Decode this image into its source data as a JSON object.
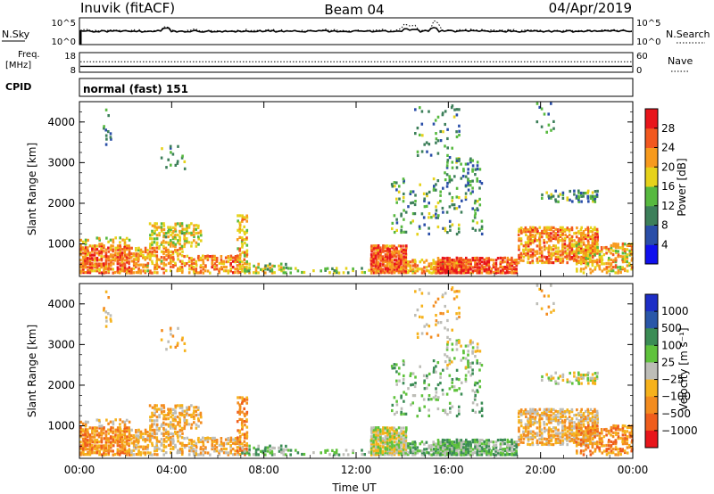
{
  "header": {
    "station": "Inuvik (fitACF)",
    "beam": "Beam 04",
    "date": "04/Apr/2019"
  },
  "chart_data": [
    {
      "type": "line",
      "name": "nsky-nsearch-panel",
      "left_label": "N.Sky",
      "right_label": "N.Search",
      "left_ticks": [
        "10^5",
        "10^0"
      ],
      "right_ticks": [
        "10^5",
        "10^0"
      ],
      "series": [
        {
          "name": "N.Sky",
          "style": "solid"
        },
        {
          "name": "N.Search",
          "style": "dotted"
        }
      ]
    },
    {
      "type": "line",
      "name": "freq-nave-panel",
      "left_label_line1": "Freq.",
      "left_label_line2": "[MHz]",
      "right_label": "Nave",
      "left_ticks": [
        18,
        8
      ],
      "right_ticks": [
        60,
        0
      ],
      "series": [
        {
          "name": "Freq.",
          "style": "solid",
          "value": 11
        },
        {
          "name": "Nave",
          "style": "dotted",
          "value": 32
        }
      ]
    },
    {
      "type": "text",
      "name": "cpid-panel",
      "label": "CPID",
      "text": "normal (fast) 151"
    },
    {
      "type": "heatmap",
      "name": "power-panel",
      "ylabel": "Slant Range [km]",
      "y_ticks": [
        1000,
        2000,
        3000,
        4000
      ],
      "ylim": [
        200,
        4500
      ],
      "x_ticks": [
        "00:00",
        "04:00",
        "08:00",
        "12:00",
        "16:00",
        "20:00",
        "00:00"
      ],
      "colorbar_label": "Power [dB]",
      "colorbar_ticks": [
        4,
        8,
        12,
        16,
        20,
        24,
        28
      ],
      "colorbar_range": [
        0,
        30
      ],
      "colorbar_colors": [
        "#1010ee",
        "#2a4ea8",
        "#3d7f5a",
        "#57b93f",
        "#e6d21a",
        "#f79a1d",
        "#f2581f",
        "#e8151b"
      ]
    },
    {
      "type": "heatmap",
      "name": "velocity-panel",
      "ylabel": "Slant Range [km]",
      "y_ticks": [
        1000,
        2000,
        3000,
        4000
      ],
      "ylim": [
        200,
        4500
      ],
      "x_ticks": [
        "00:00",
        "04:00",
        "08:00",
        "12:00",
        "16:00",
        "20:00",
        "00:00"
      ],
      "xlabel": "Time UT",
      "colorbar_label": "Velocity [m s⁻¹]",
      "colorbar_ticks": [
        "1000",
        "500",
        "100",
        "25",
        "−25",
        "−100",
        "−500",
        "−1000"
      ],
      "colorbar_colors": [
        "#1d2ec6",
        "#2a57a8",
        "#3b8c55",
        "#5fc23c",
        "#bdbdb7",
        "#f6b21c",
        "#f38c1f",
        "#ef5d1c",
        "#e8151b"
      ]
    }
  ]
}
